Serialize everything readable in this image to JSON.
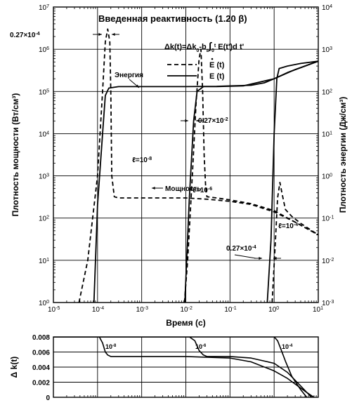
{
  "chart_data": [
    {
      "type": "line",
      "title": "Введенная реактивность (1.20 β)",
      "formula": {
        "lhs": "Δk(t)=Δk",
        "sub0": "0",
        "mid": "-b",
        "subE": "ε",
        "int": "∫",
        "intUpper": "t",
        "intLower": "0",
        "body": "E(t')d t'"
      },
      "xlabel": "Время (с)",
      "ylabel_left": "Плотность мощности (Вт/см³)",
      "ylabel_right": "Плотность энергии (Дж/см³)",
      "x_scale": "log",
      "y_scale": "log",
      "xlim": [
        1e-05,
        10
      ],
      "ylim_left": [
        1,
        10000000.0
      ],
      "ylim_right": [
        0.001,
        10000.0
      ],
      "grid": true,
      "x_ticks": [
        {
          "value": 1e-05,
          "base": "10",
          "exp": "-5"
        },
        {
          "value": 0.0001,
          "base": "10",
          "exp": "-4"
        },
        {
          "value": 0.001,
          "base": "10",
          "exp": "-3"
        },
        {
          "value": 0.01,
          "base": "10",
          "exp": "-2"
        },
        {
          "value": 0.1,
          "base": "10",
          "exp": "-1"
        },
        {
          "value": 1,
          "base": "10",
          "exp": "0"
        },
        {
          "value": 10,
          "base": "10",
          "exp": "1"
        }
      ],
      "y_ticks_left": [
        {
          "value": 1,
          "base": "10",
          "exp": "0"
        },
        {
          "value": 10,
          "base": "10",
          "exp": "1"
        },
        {
          "value": 100,
          "base": "10",
          "exp": "2"
        },
        {
          "value": 1000,
          "base": "10",
          "exp": "3"
        },
        {
          "value": 10000,
          "base": "10",
          "exp": "4"
        },
        {
          "value": 100000,
          "base": "10",
          "exp": "5"
        },
        {
          "value": 1000000,
          "base": "10",
          "exp": "6"
        },
        {
          "value": 10000000,
          "base": "10",
          "exp": "7"
        }
      ],
      "y_ticks_right": [
        {
          "value": 0.001,
          "base": "10",
          "exp": "-3"
        },
        {
          "value": 0.01,
          "base": "10",
          "exp": "-2"
        },
        {
          "value": 0.1,
          "base": "10",
          "exp": "-1"
        },
        {
          "value": 1,
          "base": "10",
          "exp": "0"
        },
        {
          "value": 10,
          "base": "10",
          "exp": "1"
        },
        {
          "value": 100,
          "base": "10",
          "exp": "2"
        },
        {
          "value": 1000,
          "base": "10",
          "exp": "3"
        },
        {
          "value": 10000,
          "base": "10",
          "exp": "4"
        }
      ],
      "legend": {
        "placement": "top-right",
        "entries": [
          {
            "label": "E (t)",
            "dot": true,
            "style": "dashed"
          },
          {
            "label": "E (t)",
            "dot": false,
            "style": "solid"
          }
        ]
      },
      "series": [
        {
          "kind": "power",
          "style": "dashed",
          "generation_time": "10⁻⁸",
          "points": [
            [
              3.8e-05,
              1
            ],
            [
              6e-05,
              10
            ],
            [
              0.0001,
              1000
            ],
            [
              0.00013,
              100000
            ],
            [
              0.00015,
              1500000
            ],
            [
              0.00017,
              3000000
            ],
            [
              0.00019,
              1500000
            ],
            [
              0.0002,
              100000
            ],
            [
              0.00021,
              1000
            ],
            [
              0.00024,
              320
            ],
            [
              0.0003,
              300
            ],
            [
              0.001,
              300
            ],
            [
              0.003,
              300
            ],
            [
              0.01,
              300
            ],
            [
              0.03,
              280
            ],
            [
              0.1,
              250
            ],
            [
              0.3,
              210
            ],
            [
              1,
              140
            ],
            [
              3,
              80
            ],
            [
              10,
              40
            ]
          ]
        },
        {
          "kind": "energy",
          "style": "solid",
          "generation_time": "10⁻⁸",
          "points": [
            [
              8.3e-05,
              1
            ],
            [
              0.0001,
              200
            ],
            [
              0.00013,
              10000
            ],
            [
              0.00015,
              80000
            ],
            [
              0.00018,
              120000
            ],
            [
              0.0003,
              130000
            ],
            [
              0.001,
              130000
            ],
            [
              0.01,
              130000
            ],
            [
              0.05,
              132000
            ],
            [
              0.1,
              135000
            ],
            [
              0.3,
              140000
            ],
            [
              0.6,
              160000
            ],
            [
              1,
              200000
            ],
            [
              2,
              280000
            ],
            [
              5,
              400000
            ],
            [
              10,
              520000
            ]
          ]
        },
        {
          "kind": "power",
          "style": "dashed",
          "generation_time": "10⁻⁶",
          "points": [
            [
              0.0093,
              1
            ],
            [
              0.011,
              10
            ],
            [
              0.014,
              1000
            ],
            [
              0.017,
              50000
            ],
            [
              0.02,
              600000
            ],
            [
              0.022,
              1000000
            ],
            [
              0.024,
              100000
            ],
            [
              0.026,
              3000
            ],
            [
              0.028,
              600
            ],
            [
              0.03,
              320
            ],
            [
              0.05,
              300
            ],
            [
              0.1,
              270
            ],
            [
              0.3,
              220
            ],
            [
              1,
              150
            ],
            [
              3,
              80
            ],
            [
              10,
              40
            ]
          ]
        },
        {
          "kind": "energy",
          "style": "solid",
          "generation_time": "10⁻⁶",
          "points": [
            [
              0.0095,
              1
            ],
            [
              0.012,
              300
            ],
            [
              0.015,
              20000
            ],
            [
              0.018,
              100000
            ],
            [
              0.025,
              130000
            ],
            [
              0.05,
              130000
            ],
            [
              0.2,
              135000
            ],
            [
              1,
              200000
            ],
            [
              3,
              330000
            ],
            [
              10,
              520000
            ]
          ]
        },
        {
          "kind": "power",
          "style": "dashed",
          "generation_time": "10⁻⁴",
          "points": [
            [
              0.9,
              1
            ],
            [
              1.05,
              20
            ],
            [
              1.2,
              300
            ],
            [
              1.35,
              700
            ],
            [
              1.5,
              400
            ],
            [
              1.8,
              160
            ],
            [
              2.5,
              110
            ],
            [
              4,
              75
            ],
            [
              10,
              40
            ]
          ]
        },
        {
          "kind": "energy",
          "style": "solid",
          "generation_time": "10⁻⁴",
          "points": [
            [
              0.7,
              1
            ],
            [
              0.85,
              30
            ],
            [
              1.0,
              10000
            ],
            [
              1.15,
              200000
            ],
            [
              1.3,
              350000
            ],
            [
              2,
              400000
            ],
            [
              4,
              460000
            ],
            [
              10,
              520000
            ]
          ]
        }
      ],
      "annotations": [
        {
          "text": "0.27×10",
          "exp": "-4",
          "target": "first-peak-width"
        },
        {
          "text": "0.27×10",
          "exp": "-2",
          "target": "second-peak-width"
        },
        {
          "text": "0.27×10",
          "exp": "-4",
          "target": "third-peak-width"
        },
        {
          "text": "Энергия",
          "target": "energy-curve"
        },
        {
          "text": "Мощность",
          "target": "power-curve"
        },
        {
          "text": "ℓ=10",
          "exp": "-8"
        },
        {
          "text": "ℓ=10",
          "exp": "-6"
        },
        {
          "text": "ℓ=10",
          "exp": "-4"
        }
      ]
    },
    {
      "type": "line",
      "ylabel": "Δ k(t)",
      "x_scale": "log",
      "xlim": [
        1e-05,
        10
      ],
      "ylim": [
        0,
        0.008
      ],
      "grid": true,
      "y_ticks": [
        "0",
        "0.002",
        "0.004",
        "0.006",
        "0.008"
      ],
      "series": [
        {
          "generation_time": "10⁻⁸",
          "points": [
            [
              1e-05,
              0.008
            ],
            [
              0.00011,
              0.008
            ],
            [
              0.00013,
              0.0072
            ],
            [
              0.00015,
              0.006
            ],
            [
              0.00017,
              0.0056
            ],
            [
              0.0002,
              0.0054
            ],
            [
              0.001,
              0.0054
            ],
            [
              0.01,
              0.0054
            ],
            [
              0.1,
              0.0052
            ],
            [
              0.3,
              0.0047
            ],
            [
              1,
              0.0035
            ],
            [
              2,
              0.0025
            ],
            [
              5,
              0.0008
            ],
            [
              8,
              0
            ]
          ]
        },
        {
          "generation_time": "10⁻⁶",
          "points": [
            [
              1e-05,
              0.008
            ],
            [
              0.012,
              0.008
            ],
            [
              0.016,
              0.0075
            ],
            [
              0.02,
              0.0062
            ],
            [
              0.025,
              0.0056
            ],
            [
              0.03,
              0.0054
            ],
            [
              0.1,
              0.0054
            ],
            [
              0.3,
              0.0052
            ],
            [
              1,
              0.0045
            ],
            [
              2,
              0.0033
            ],
            [
              4,
              0.0015
            ],
            [
              7,
              0
            ]
          ]
        },
        {
          "generation_time": "10⁻⁴",
          "points": [
            [
              1e-05,
              0.008
            ],
            [
              1.0,
              0.008
            ],
            [
              1.2,
              0.0075
            ],
            [
              1.4,
              0.0065
            ],
            [
              1.8,
              0.0048
            ],
            [
              2.5,
              0.0028
            ],
            [
              4,
              0.001
            ],
            [
              5.5,
              0
            ]
          ]
        }
      ],
      "curve_labels": [
        {
          "text": "10",
          "exp": "-8"
        },
        {
          "text": "10",
          "exp": "-6"
        },
        {
          "text": "10",
          "exp": "-4"
        }
      ]
    }
  ]
}
